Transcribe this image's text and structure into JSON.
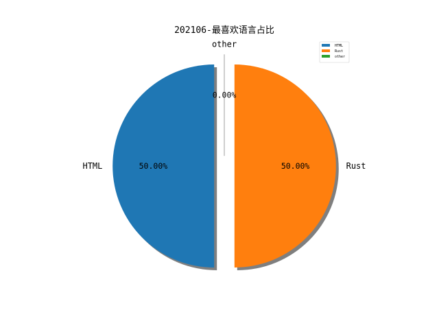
{
  "chart_data": {
    "type": "pie",
    "title": "202106-最喜欢语言占比",
    "slices": [
      {
        "label": "HTML",
        "value": 50.0,
        "percent_label": "50.00%",
        "color": "#1f77b4"
      },
      {
        "label": "Rust",
        "value": 50.0,
        "percent_label": "50.00%",
        "color": "#ff7f0e"
      },
      {
        "label": "other",
        "value": 0.0,
        "percent_label": "0.00%",
        "color": "#2ca02c"
      }
    ],
    "legend": {
      "entries": [
        "HTML",
        "Rust",
        "other"
      ],
      "placement": "upper-right"
    },
    "start_angle": "90 degrees (top)",
    "exploded": true,
    "shadow": true
  }
}
